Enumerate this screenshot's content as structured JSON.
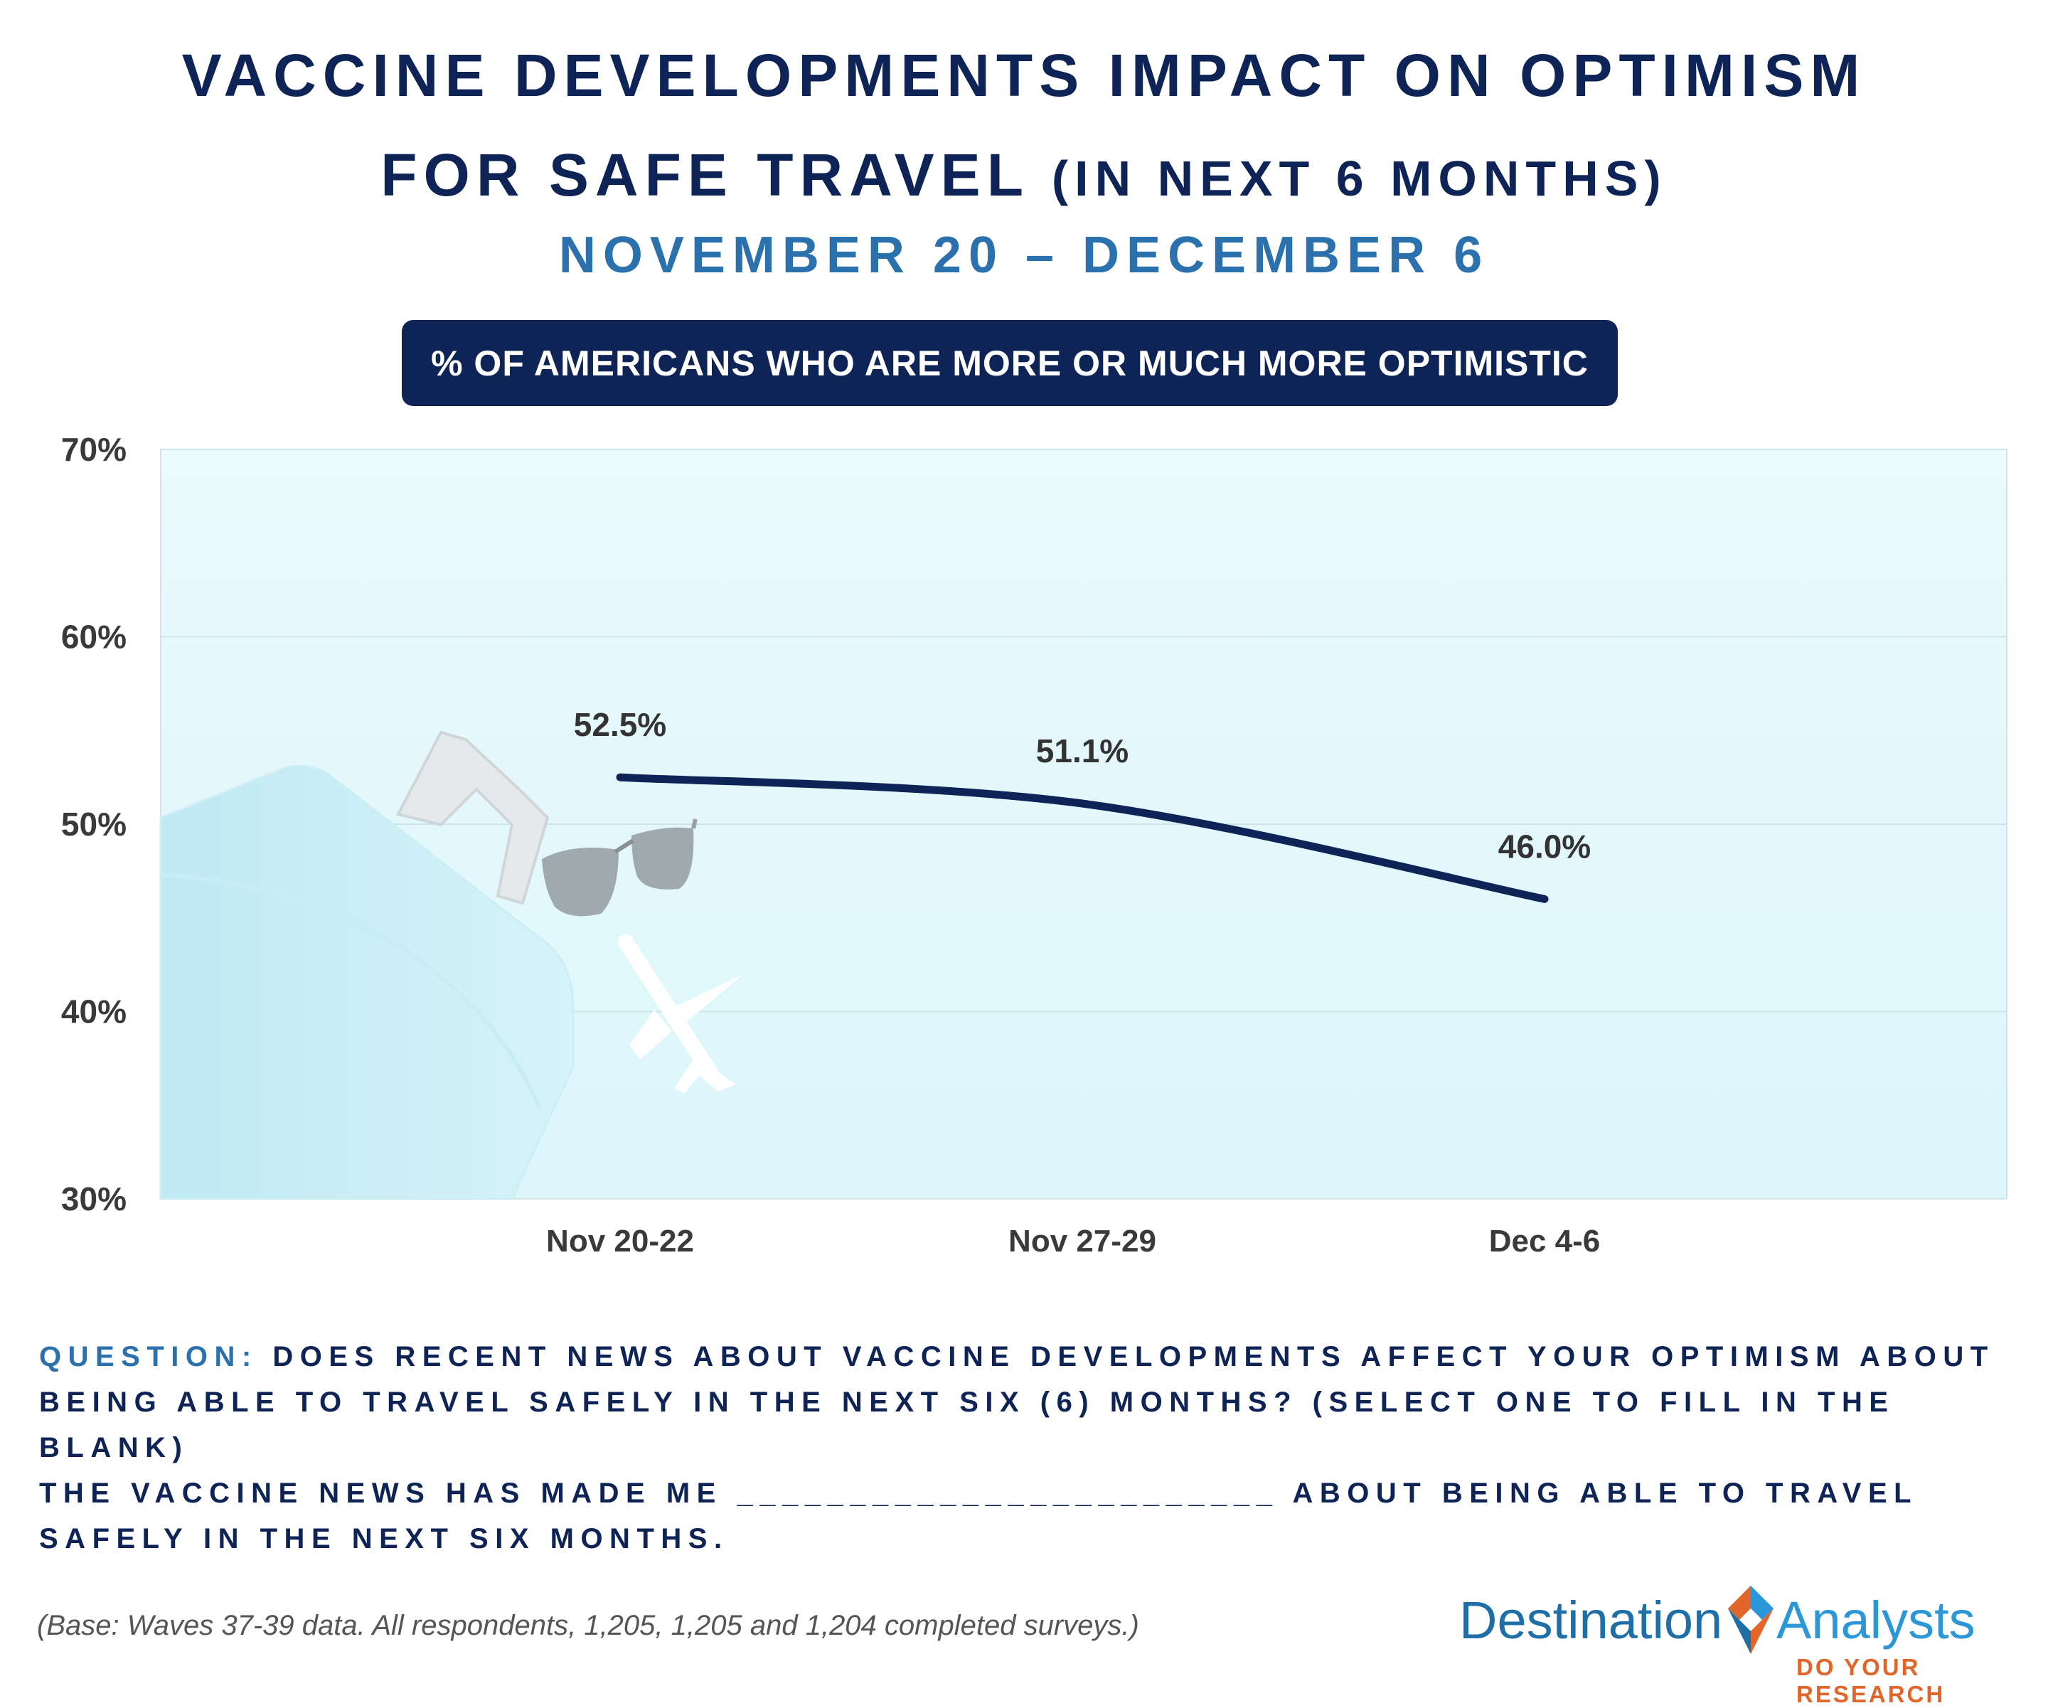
{
  "title": {
    "line1": "VACCINE DEVELOPMENTS IMPACT ON OPTIMISM",
    "line2_main": "FOR SAFE TRAVEL",
    "line2_paren": "(IN NEXT 6 MONTHS)",
    "line3": "NOVEMBER 20 – DECEMBER 6"
  },
  "subtitle_pill": "% OF AMERICANS WHO ARE MORE OR MUCH MORE OPTIMISTIC",
  "chart_data": {
    "type": "line",
    "categories": [
      "Nov 20-22",
      "Nov 27-29",
      "Dec 4-6"
    ],
    "values": [
      52.5,
      51.1,
      46.0
    ],
    "data_labels": [
      "52.5%",
      "51.1%",
      "46.0%"
    ],
    "ylim": [
      30,
      70
    ],
    "yticks": [
      30,
      40,
      50,
      60,
      70
    ],
    "ytick_labels": [
      "30%",
      "40%",
      "50%",
      "60%",
      "70%"
    ],
    "grid": true,
    "line_color": "#0f2456",
    "plot_background": "#e6f9fd"
  },
  "question": {
    "label": "QUESTION:",
    "text": "DOES RECENT NEWS ABOUT VACCINE DEVELOPMENTS AFFECT YOUR OPTIMISM ABOUT BEING ABLE TO TRAVEL SAFELY IN THE NEXT SIX (6) MONTHS? (SELECT ONE TO FILL IN THE BLANK)"
  },
  "statement": "THE VACCINE NEWS HAS MADE ME ________________________ ABOUT BEING ABLE TO TRAVEL SAFELY IN THE NEXT SIX MONTHS.",
  "footnote": "(Base: Waves 37-39 data. All respondents, 1,205, 1,205 and 1,204 completed surveys.)",
  "logo": {
    "left_word": "Destination",
    "right_word": "Analysts",
    "tagline": "DO YOUR RESEARCH",
    "colors": {
      "dark_blue": "#1e6fa8",
      "light_blue": "#2b97d8",
      "orange": "#e2652a"
    }
  },
  "colors": {
    "navy": "#0f2456",
    "accent_blue": "#2b71ad"
  },
  "icons": [
    "suitcase-icon",
    "sunglasses-icon",
    "airplane-icon"
  ]
}
